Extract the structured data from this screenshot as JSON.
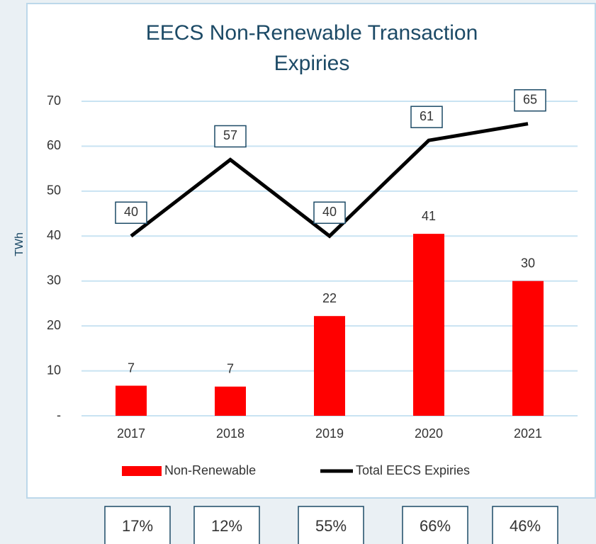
{
  "chart_data": {
    "type": "bar-line",
    "title": [
      "EECS Non-Renewable Transaction",
      "Expiries"
    ],
    "y_label": "TWh",
    "categories": [
      "2017",
      "2018",
      "2019",
      "2020",
      "2021"
    ],
    "series": [
      {
        "name": "Non-Renewable",
        "type": "bar",
        "color": "#ff0000",
        "values": [
          6.7,
          6.5,
          22.2,
          40.5,
          30
        ],
        "value_labels": [
          "7",
          "7",
          "22",
          "41",
          "30"
        ]
      },
      {
        "name": "Total EECS Expiries",
        "type": "line",
        "color": "#000000",
        "values": [
          40,
          57,
          40,
          61.3,
          65
        ],
        "value_labels": [
          "40",
          "57",
          "40",
          "61",
          "65"
        ]
      }
    ],
    "ylim": [
      0,
      70
    ],
    "yticks": [
      {
        "value": 0,
        "label": "-"
      },
      10,
      20,
      30,
      40,
      50,
      60,
      70
    ],
    "grid": true,
    "legend": "bottom",
    "annotations": [
      "17%",
      "12%",
      "55%",
      "66%",
      "46%"
    ]
  }
}
